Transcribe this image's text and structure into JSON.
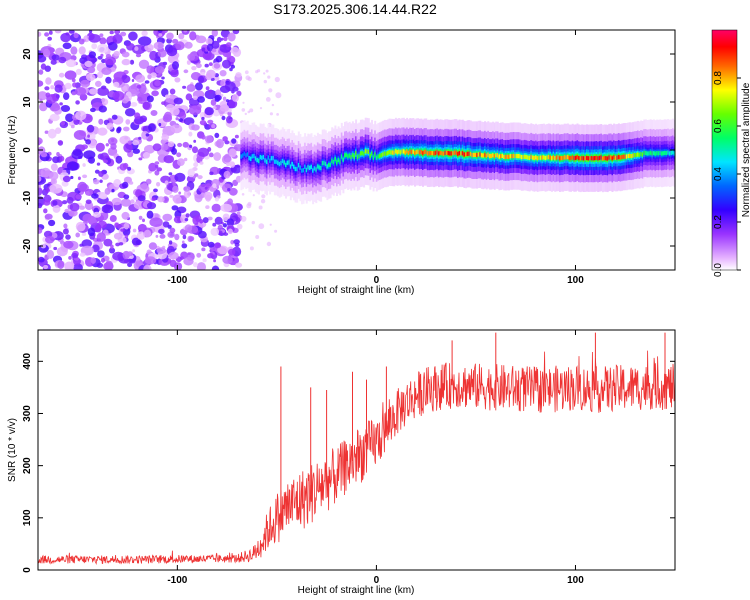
{
  "title": "S173.2025.306.14.44.R22",
  "chart_data": [
    {
      "type": "heatmap",
      "xlabel": "Height of straight line (km)",
      "ylabel": "Frequency (Hz)",
      "xlim": [
        -170,
        150
      ],
      "ylim": [
        -25,
        25
      ],
      "xticks": [
        -100,
        0,
        100
      ],
      "yticks": [
        -20,
        -10,
        0,
        10,
        20
      ],
      "noise_region_x": [
        -170,
        -69
      ],
      "ridge": {
        "x": [
          -68,
          -60,
          -52,
          -45,
          -38,
          -32,
          -25,
          -15,
          -5,
          0,
          5,
          10,
          20,
          40,
          60,
          80,
          100,
          115,
          125,
          135,
          150
        ],
        "y": [
          -1,
          -1.8,
          -2.2,
          -3,
          -3.8,
          -4,
          -3,
          -1.5,
          -0.8,
          -1.5,
          -0.6,
          -0.4,
          -0.5,
          -0.7,
          -1.2,
          -1.6,
          -1.6,
          -1.7,
          -1.5,
          -0.7,
          -0.6
        ],
        "amp": [
          0.4,
          0.5,
          0.45,
          0.5,
          0.45,
          0.5,
          0.55,
          0.6,
          0.7,
          0.6,
          0.75,
          0.8,
          0.9,
          0.95,
          0.85,
          0.8,
          0.95,
          0.95,
          0.9,
          0.6,
          0.5
        ]
      },
      "colorbar": {
        "label": "Normalized spectral amplitude",
        "range": [
          0,
          1
        ],
        "ticks": [
          "0.0",
          "0.2",
          "0.4",
          "0.6",
          "0.8"
        ]
      }
    },
    {
      "type": "line",
      "xlabel": "Height of straight line (km)",
      "ylabel": "SNR (10 * v/v)",
      "xlim": [
        -170,
        150
      ],
      "ylim": [
        0,
        460
      ],
      "xticks": [
        -100,
        0,
        100
      ],
      "yticks": [
        0,
        100,
        200,
        300,
        400
      ],
      "color": "#ee3333",
      "series": [
        {
          "name": "SNR",
          "x": [
            -170,
            -120,
            -70,
            -62,
            -58,
            -54,
            -50,
            -45,
            -40,
            -35,
            -30,
            -25,
            -20,
            -15,
            -10,
            -5,
            0,
            5,
            10,
            15,
            20,
            25,
            30,
            40,
            50,
            60,
            70,
            80,
            90,
            100,
            110,
            120,
            130,
            140,
            150
          ],
          "mean": [
            20,
            20,
            22,
            30,
            50,
            80,
            100,
            120,
            130,
            140,
            155,
            170,
            180,
            200,
            215,
            230,
            245,
            270,
            300,
            320,
            335,
            345,
            350,
            355,
            352,
            350,
            348,
            345,
            347,
            350,
            345,
            348,
            350,
            352,
            350
          ],
          "spread": [
            8,
            8,
            8,
            15,
            30,
            40,
            50,
            55,
            60,
            60,
            60,
            60,
            55,
            55,
            55,
            55,
            50,
            45,
            45,
            45,
            45,
            45,
            45,
            45,
            45,
            45,
            45,
            45,
            45,
            45,
            45,
            45,
            45,
            45,
            45
          ]
        }
      ],
      "peaks": [
        {
          "x": -48,
          "y": 390
        },
        {
          "x": -33,
          "y": 350
        },
        {
          "x": -25,
          "y": 345
        },
        {
          "x": -12,
          "y": 380
        },
        {
          "x": -5,
          "y": 365
        },
        {
          "x": 5,
          "y": 390
        },
        {
          "x": 38,
          "y": 440
        },
        {
          "x": 60,
          "y": 455
        },
        {
          "x": 110,
          "y": 455
        },
        {
          "x": 145,
          "y": 455
        }
      ]
    }
  ]
}
